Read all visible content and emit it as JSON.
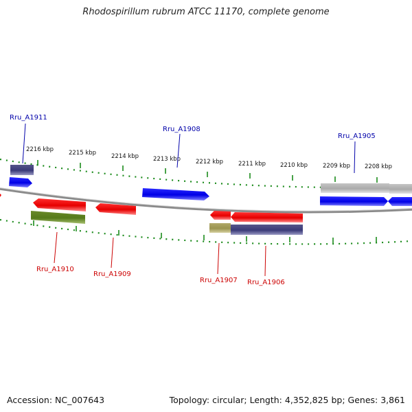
{
  "title": "Rhodospirillum rubrum ATCC 11170, complete genome",
  "footer": {
    "accession": "Accession: NC_007643",
    "summary": "Topology: circular; Length: 4,352,825 bp; Genes: 3,861"
  },
  "ruler": {
    "unit": "kbp",
    "labels": [
      "2216 kbp",
      "2215 kbp",
      "2214 kbp",
      "2213 kbp",
      "2212 kbp",
      "2211 kbp",
      "2210 kbp",
      "2209 kbp",
      "2208 kbp"
    ],
    "tick_color": "#1a8a1a"
  },
  "colors": {
    "forward_gene": "#0000ee",
    "reverse_gene": "#ee0000",
    "forward_label": "#0000aa",
    "reverse_label": "#cc0000",
    "backbone": "#888888"
  },
  "gene_labels": [
    {
      "id": "label-rru-a1911",
      "text": "Rru_A1911",
      "strand": "forward"
    },
    {
      "id": "label-rru-a1908",
      "text": "Rru_A1908",
      "strand": "forward"
    },
    {
      "id": "label-rru-a1905",
      "text": "Rru_A1905",
      "strand": "forward"
    },
    {
      "id": "label-rru-a1910",
      "text": "Rru_A1910",
      "strand": "reverse"
    },
    {
      "id": "label-rru-a1909",
      "text": "Rru_A1909",
      "strand": "reverse"
    },
    {
      "id": "label-rru-a1907",
      "text": "Rru_A1907",
      "strand": "reverse"
    },
    {
      "id": "label-rru-a1906",
      "text": "Rru_A1906",
      "strand": "reverse"
    }
  ]
}
